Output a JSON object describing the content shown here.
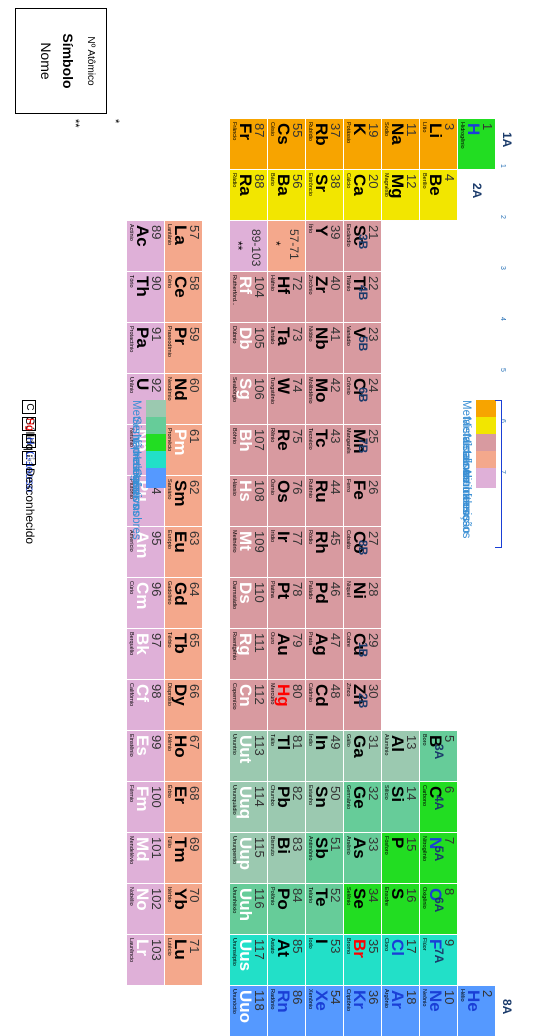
{
  "groups": [
    {
      "label": "1A",
      "period_col": 0
    },
    {
      "label": "2A"
    },
    {
      "label": "3B"
    },
    {
      "label": "4B"
    },
    {
      "label": "5B"
    },
    {
      "label": "6B"
    },
    {
      "label": "7B"
    },
    {
      "label": "8B"
    },
    {
      "label": "1B"
    },
    {
      "label": "2B"
    },
    {
      "label": "3A"
    },
    {
      "label": "4A"
    },
    {
      "label": "5A"
    },
    {
      "label": "6A"
    },
    {
      "label": "7A"
    },
    {
      "label": "8A"
    }
  ],
  "periods": [
    "1",
    "2",
    "3",
    "4",
    "5",
    "6",
    "7"
  ],
  "markers": {
    "lanthanide": "*",
    "actinide": "**"
  },
  "legend": {
    "categories": [
      {
        "label": "Metais alcalinos",
        "color": "#f7a400"
      },
      {
        "label": "Metais alcalino-terrosos",
        "color": "#f2e600"
      },
      {
        "label": "Metais de transição",
        "color": "#d89aa0"
      },
      {
        "label": "Lantanídeos",
        "color": "#f4a88c"
      },
      {
        "label": "Actinídeos",
        "color": "#dfb0d8"
      },
      {
        "label": "Metais representativos",
        "color": "#9bc9b0"
      },
      {
        "label": "Semi-metais",
        "color": "#66cc99"
      },
      {
        "label": "Não-metais",
        "color": "#22dd22"
      },
      {
        "label": "Halogênios",
        "color": "#22e0c8"
      },
      {
        "label": "Gases nobres",
        "color": "#5599ff"
      }
    ],
    "states": [
      {
        "box": "C",
        "label": "Sólido"
      },
      {
        "box": "Hg",
        "label": "Líquido"
      },
      {
        "box": "H",
        "label": "Gasoso"
      },
      {
        "box": "Rf",
        "label": "Desconhecido"
      }
    ]
  },
  "key": {
    "line1": "Nº Atômico",
    "line2": "Símbolo",
    "line3": "Nome"
  },
  "elements": [
    {
      "n": "1",
      "s": "H",
      "nm": "Hidrogênio",
      "cat": "nm",
      "st": "gas"
    },
    {
      "n": "2",
      "s": "He",
      "nm": "Hélio",
      "cat": "ng",
      "st": "gas"
    },
    {
      "n": "3",
      "s": "Li",
      "nm": "Lítio",
      "cat": "ak"
    },
    {
      "n": "4",
      "s": "Be",
      "nm": "Berílio",
      "cat": "ae"
    },
    {
      "n": "5",
      "s": "B",
      "nm": "Boro",
      "cat": "sm"
    },
    {
      "n": "6",
      "s": "C",
      "nm": "Carbono",
      "cat": "nm"
    },
    {
      "n": "7",
      "s": "N",
      "nm": "Nitrogênio",
      "cat": "nm",
      "st": "gas"
    },
    {
      "n": "8",
      "s": "O",
      "nm": "Oxigênio",
      "cat": "nm",
      "st": "gas"
    },
    {
      "n": "9",
      "s": "F",
      "nm": "Flúor",
      "cat": "ha",
      "st": "gas"
    },
    {
      "n": "10",
      "s": "Ne",
      "nm": "Neônio",
      "cat": "ng",
      "st": "gas"
    },
    {
      "n": "11",
      "s": "Na",
      "nm": "Sódio",
      "cat": "ak"
    },
    {
      "n": "12",
      "s": "Mg",
      "nm": "Magnésio",
      "cat": "ae"
    },
    {
      "n": "13",
      "s": "Al",
      "nm": "Alumínio",
      "cat": "rm"
    },
    {
      "n": "14",
      "s": "Si",
      "nm": "Silício",
      "cat": "sm"
    },
    {
      "n": "15",
      "s": "P",
      "nm": "Fósforo",
      "cat": "nm"
    },
    {
      "n": "16",
      "s": "S",
      "nm": "Enxofre",
      "cat": "nm"
    },
    {
      "n": "17",
      "s": "Cl",
      "nm": "Cloro",
      "cat": "ha",
      "st": "gas"
    },
    {
      "n": "18",
      "s": "Ar",
      "nm": "Argônio",
      "cat": "ng",
      "st": "gas"
    },
    {
      "n": "19",
      "s": "K",
      "nm": "Potássio",
      "cat": "ak"
    },
    {
      "n": "20",
      "s": "Ca",
      "nm": "Cálcio",
      "cat": "ae"
    },
    {
      "n": "21",
      "s": "Sc",
      "nm": "Escândio",
      "cat": "tm"
    },
    {
      "n": "22",
      "s": "Ti",
      "nm": "Titânio",
      "cat": "tm"
    },
    {
      "n": "23",
      "s": "V",
      "nm": "Vanádio",
      "cat": "tm"
    },
    {
      "n": "24",
      "s": "Cr",
      "nm": "Crômio",
      "cat": "tm"
    },
    {
      "n": "25",
      "s": "Mn",
      "nm": "Manganês",
      "cat": "tm"
    },
    {
      "n": "26",
      "s": "Fe",
      "nm": "Ferro",
      "cat": "tm"
    },
    {
      "n": "27",
      "s": "Co",
      "nm": "Cobalto",
      "cat": "tm"
    },
    {
      "n": "28",
      "s": "Ni",
      "nm": "Níquel",
      "cat": "tm"
    },
    {
      "n": "29",
      "s": "Cu",
      "nm": "Cobre",
      "cat": "tm"
    },
    {
      "n": "30",
      "s": "Zn",
      "nm": "Zinco",
      "cat": "tm"
    },
    {
      "n": "31",
      "s": "Ga",
      "nm": "Gálio",
      "cat": "rm"
    },
    {
      "n": "32",
      "s": "Ge",
      "nm": "Germânio",
      "cat": "sm"
    },
    {
      "n": "33",
      "s": "As",
      "nm": "Arsênio",
      "cat": "sm"
    },
    {
      "n": "34",
      "s": "Se",
      "nm": "Selênio",
      "cat": "nm"
    },
    {
      "n": "35",
      "s": "Br",
      "nm": "Bromo",
      "cat": "ha",
      "st": "liq"
    },
    {
      "n": "36",
      "s": "Kr",
      "nm": "Criptônio",
      "cat": "ng",
      "st": "gas"
    },
    {
      "n": "37",
      "s": "Rb",
      "nm": "Rubídio",
      "cat": "ak"
    },
    {
      "n": "38",
      "s": "Sr",
      "nm": "Estrôncio",
      "cat": "ae"
    },
    {
      "n": "39",
      "s": "Y",
      "nm": "Ítrio",
      "cat": "tm"
    },
    {
      "n": "40",
      "s": "Zr",
      "nm": "Zircônio",
      "cat": "tm"
    },
    {
      "n": "41",
      "s": "Nb",
      "nm": "Nióbio",
      "cat": "tm"
    },
    {
      "n": "42",
      "s": "Mo",
      "nm": "Molibdênio",
      "cat": "tm"
    },
    {
      "n": "43",
      "s": "Tc",
      "nm": "Tecnécio",
      "cat": "tm"
    },
    {
      "n": "44",
      "s": "Ru",
      "nm": "Rutênio",
      "cat": "tm"
    },
    {
      "n": "45",
      "s": "Rh",
      "nm": "Ródio",
      "cat": "tm"
    },
    {
      "n": "46",
      "s": "Pd",
      "nm": "Paládio",
      "cat": "tm"
    },
    {
      "n": "47",
      "s": "Ag",
      "nm": "Prata",
      "cat": "tm"
    },
    {
      "n": "48",
      "s": "Cd",
      "nm": "Cádmio",
      "cat": "tm"
    },
    {
      "n": "49",
      "s": "In",
      "nm": "Índio",
      "cat": "rm"
    },
    {
      "n": "50",
      "s": "Sn",
      "nm": "Estanho",
      "cat": "rm"
    },
    {
      "n": "51",
      "s": "Sb",
      "nm": "Antimônio",
      "cat": "sm"
    },
    {
      "n": "52",
      "s": "Te",
      "nm": "Telúrio",
      "cat": "sm"
    },
    {
      "n": "53",
      "s": "I",
      "nm": "Iodo",
      "cat": "ha"
    },
    {
      "n": "54",
      "s": "Xe",
      "nm": "Xenônio",
      "cat": "ng",
      "st": "gas"
    },
    {
      "n": "55",
      "s": "Cs",
      "nm": "Césio",
      "cat": "ak"
    },
    {
      "n": "56",
      "s": "Ba",
      "nm": "Bário",
      "cat": "ae"
    },
    {
      "n": "57-71",
      "s": "*",
      "nm": "",
      "cat": "la",
      "ph": true
    },
    {
      "n": "72",
      "s": "Hf",
      "nm": "Háfnio",
      "cat": "tm"
    },
    {
      "n": "73",
      "s": "Ta",
      "nm": "Tântalo",
      "cat": "tm"
    },
    {
      "n": "74",
      "s": "W",
      "nm": "Tungstênio",
      "cat": "tm"
    },
    {
      "n": "75",
      "s": "Re",
      "nm": "Rênio",
      "cat": "tm"
    },
    {
      "n": "76",
      "s": "Os",
      "nm": "Ósmio",
      "cat": "tm"
    },
    {
      "n": "77",
      "s": "Ir",
      "nm": "Irídio",
      "cat": "tm"
    },
    {
      "n": "78",
      "s": "Pt",
      "nm": "Platina",
      "cat": "tm"
    },
    {
      "n": "79",
      "s": "Au",
      "nm": "Ouro",
      "cat": "tm"
    },
    {
      "n": "80",
      "s": "Hg",
      "nm": "Mercúrio",
      "cat": "tm",
      "st": "liq"
    },
    {
      "n": "81",
      "s": "Tl",
      "nm": "Tálio",
      "cat": "rm"
    },
    {
      "n": "82",
      "s": "Pb",
      "nm": "Chumbo",
      "cat": "rm"
    },
    {
      "n": "83",
      "s": "Bi",
      "nm": "Bismuto",
      "cat": "rm"
    },
    {
      "n": "84",
      "s": "Po",
      "nm": "Polônio",
      "cat": "sm"
    },
    {
      "n": "85",
      "s": "At",
      "nm": "Astato",
      "cat": "ha"
    },
    {
      "n": "86",
      "s": "Rn",
      "nm": "Radônio",
      "cat": "ng",
      "st": "gas"
    },
    {
      "n": "87",
      "s": "Fr",
      "nm": "Frâncio",
      "cat": "ak"
    },
    {
      "n": "88",
      "s": "Ra",
      "nm": "Rádio",
      "cat": "ae"
    },
    {
      "n": "89-103",
      "s": "**",
      "nm": "",
      "cat": "ac",
      "ph": true
    },
    {
      "n": "104",
      "s": "Rf",
      "nm": "Rutherfórd...",
      "cat": "tm",
      "st": "unk"
    },
    {
      "n": "105",
      "s": "Db",
      "nm": "Dúbnio",
      "cat": "tm",
      "st": "unk"
    },
    {
      "n": "106",
      "s": "Sg",
      "nm": "Seabórgio",
      "cat": "tm",
      "st": "unk"
    },
    {
      "n": "107",
      "s": "Bh",
      "nm": "Bóhrio",
      "cat": "tm",
      "st": "unk"
    },
    {
      "n": "108",
      "s": "Hs",
      "nm": "Hássio",
      "cat": "tm",
      "st": "unk"
    },
    {
      "n": "109",
      "s": "Mt",
      "nm": "Meitnério",
      "cat": "tm",
      "st": "unk"
    },
    {
      "n": "110",
      "s": "Ds",
      "nm": "Darmstádio",
      "cat": "tm",
      "st": "unk"
    },
    {
      "n": "111",
      "s": "Rg",
      "nm": "Roentgênio",
      "cat": "tm",
      "st": "unk"
    },
    {
      "n": "112",
      "s": "Cn",
      "nm": "Copernício",
      "cat": "tm",
      "st": "unk"
    },
    {
      "n": "113",
      "s": "Uut",
      "nm": "Ununtrio",
      "cat": "rm",
      "st": "unk"
    },
    {
      "n": "114",
      "s": "Uuq",
      "nm": "Ununquádio",
      "cat": "rm",
      "st": "unk"
    },
    {
      "n": "115",
      "s": "Uup",
      "nm": "Ununpentio",
      "cat": "rm",
      "st": "unk"
    },
    {
      "n": "116",
      "s": "Uuh",
      "nm": "Ununhéxio",
      "cat": "sm",
      "st": "unk"
    },
    {
      "n": "117",
      "s": "Uus",
      "nm": "Ununséptio",
      "cat": "ha",
      "st": "unk"
    },
    {
      "n": "118",
      "s": "Uuo",
      "nm": "Ununóctio",
      "cat": "ng",
      "st": "unk"
    },
    {
      "n": "57",
      "s": "La",
      "nm": "Lantânio",
      "cat": "la"
    },
    {
      "n": "58",
      "s": "Ce",
      "nm": "Cério",
      "cat": "la"
    },
    {
      "n": "59",
      "s": "Pr",
      "nm": "Praseodímio",
      "cat": "la"
    },
    {
      "n": "60",
      "s": "Nd",
      "nm": "Neodímio",
      "cat": "la"
    },
    {
      "n": "61",
      "s": "Pm",
      "nm": "Promécio",
      "cat": "la",
      "st": "unk"
    },
    {
      "n": "62",
      "s": "Sm",
      "nm": "Samário",
      "cat": "la"
    },
    {
      "n": "63",
      "s": "Eu",
      "nm": "Európio",
      "cat": "la"
    },
    {
      "n": "64",
      "s": "Gd",
      "nm": "Gadolínio",
      "cat": "la"
    },
    {
      "n": "65",
      "s": "Tb",
      "nm": "Térbio",
      "cat": "la"
    },
    {
      "n": "66",
      "s": "Dy",
      "nm": "Disprósio",
      "cat": "la"
    },
    {
      "n": "67",
      "s": "Ho",
      "nm": "Hólmio",
      "cat": "la"
    },
    {
      "n": "68",
      "s": "Er",
      "nm": "Érbio",
      "cat": "la"
    },
    {
      "n": "69",
      "s": "Tm",
      "nm": "Túlio",
      "cat": "la"
    },
    {
      "n": "70",
      "s": "Yb",
      "nm": "Itérbio",
      "cat": "la"
    },
    {
      "n": "71",
      "s": "Lu",
      "nm": "Lutécio",
      "cat": "la"
    },
    {
      "n": "89",
      "s": "Ac",
      "nm": "Actínio",
      "cat": "ac"
    },
    {
      "n": "90",
      "s": "Th",
      "nm": "Tório",
      "cat": "ac"
    },
    {
      "n": "91",
      "s": "Pa",
      "nm": "Protactínio",
      "cat": "ac"
    },
    {
      "n": "92",
      "s": "U",
      "nm": "Urânio",
      "cat": "ac"
    },
    {
      "n": "93",
      "s": "Np",
      "nm": "Netúnio",
      "cat": "ac",
      "st": "unk"
    },
    {
      "n": "94",
      "s": "Pu",
      "nm": "Plutônio",
      "cat": "ac",
      "st": "unk"
    },
    {
      "n": "95",
      "s": "Am",
      "nm": "Amerício",
      "cat": "ac",
      "st": "unk"
    },
    {
      "n": "96",
      "s": "Cm",
      "nm": "Cúrio",
      "cat": "ac",
      "st": "unk"
    },
    {
      "n": "97",
      "s": "Bk",
      "nm": "Berquélio",
      "cat": "ac",
      "st": "unk"
    },
    {
      "n": "98",
      "s": "Cf",
      "nm": "Califórnio",
      "cat": "ac",
      "st": "unk"
    },
    {
      "n": "99",
      "s": "Es",
      "nm": "Einstênio",
      "cat": "ac",
      "st": "unk"
    },
    {
      "n": "100",
      "s": "Fm",
      "nm": "Férmio",
      "cat": "ac",
      "st": "unk"
    },
    {
      "n": "101",
      "s": "Md",
      "nm": "Mendelévio",
      "cat": "ac",
      "st": "unk"
    },
    {
      "n": "102",
      "s": "No",
      "nm": "Nobélio",
      "cat": "ac",
      "st": "unk"
    },
    {
      "n": "103",
      "s": "Lr",
      "nm": "Laurêncio",
      "cat": "ac",
      "st": "unk"
    }
  ],
  "colors": {
    "ak": "#f7a400",
    "ae": "#f2e600",
    "tm": "#d89aa0",
    "la": "#f4a88c",
    "ac": "#dfb0d8",
    "rm": "#9bc9b0",
    "sm": "#66cc99",
    "nm": "#22dd22",
    "ha": "#22e0c8",
    "ng": "#5599ff"
  }
}
